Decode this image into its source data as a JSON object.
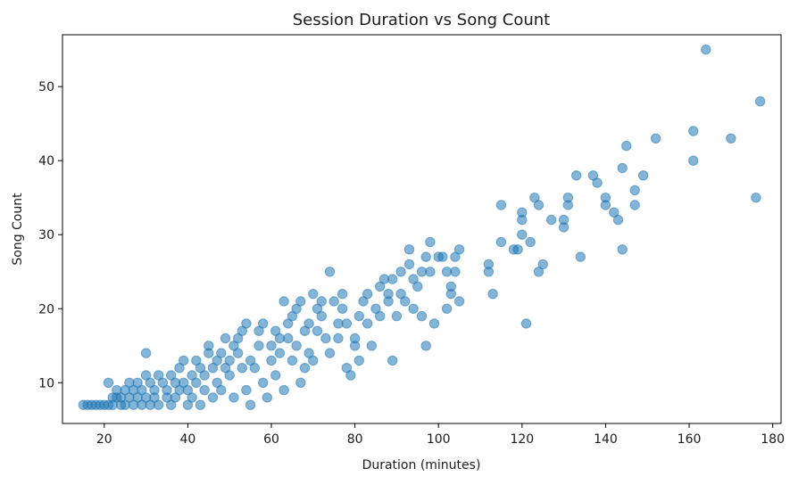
{
  "chart_data": {
    "type": "scatter",
    "title": "Session Duration vs Song Count",
    "xlabel": "Duration (minutes)",
    "ylabel": "Song Count",
    "xlim": [
      10,
      182
    ],
    "ylim": [
      4.5,
      57
    ],
    "xticks": [
      20,
      40,
      60,
      80,
      100,
      120,
      140,
      160,
      180
    ],
    "yticks": [
      10,
      20,
      30,
      40,
      50
    ],
    "grid": false,
    "marker_color": "#1f77b4",
    "marker_alpha": 0.55,
    "points": [
      [
        15,
        7
      ],
      [
        16,
        7
      ],
      [
        17,
        7
      ],
      [
        18,
        7
      ],
      [
        19,
        7
      ],
      [
        20,
        7
      ],
      [
        21,
        7
      ],
      [
        21,
        10
      ],
      [
        22,
        8
      ],
      [
        22,
        7
      ],
      [
        23,
        8
      ],
      [
        23,
        9
      ],
      [
        24,
        7
      ],
      [
        24,
        8
      ],
      [
        25,
        9
      ],
      [
        25,
        7
      ],
      [
        26,
        8
      ],
      [
        26,
        10
      ],
      [
        27,
        9
      ],
      [
        27,
        7
      ],
      [
        28,
        8
      ],
      [
        28,
        10
      ],
      [
        29,
        9
      ],
      [
        29,
        7
      ],
      [
        30,
        11
      ],
      [
        30,
        14
      ],
      [
        30,
        8
      ],
      [
        31,
        10
      ],
      [
        31,
        7
      ],
      [
        32,
        9
      ],
      [
        32,
        8
      ],
      [
        33,
        7
      ],
      [
        33,
        11
      ],
      [
        34,
        10
      ],
      [
        35,
        8
      ],
      [
        35,
        9
      ],
      [
        36,
        11
      ],
      [
        36,
        7
      ],
      [
        37,
        10
      ],
      [
        37,
        8
      ],
      [
        38,
        12
      ],
      [
        38,
        9
      ],
      [
        39,
        13
      ],
      [
        39,
        10
      ],
      [
        40,
        7
      ],
      [
        40,
        9
      ],
      [
        41,
        11
      ],
      [
        41,
        8
      ],
      [
        42,
        13
      ],
      [
        42,
        10
      ],
      [
        43,
        12
      ],
      [
        43,
        7
      ],
      [
        44,
        9
      ],
      [
        44,
        11
      ],
      [
        45,
        14
      ],
      [
        45,
        15
      ],
      [
        46,
        12
      ],
      [
        46,
        8
      ],
      [
        47,
        13
      ],
      [
        47,
        10
      ],
      [
        48,
        14
      ],
      [
        48,
        9
      ],
      [
        49,
        12
      ],
      [
        49,
        16
      ],
      [
        50,
        11
      ],
      [
        50,
        13
      ],
      [
        51,
        15
      ],
      [
        51,
        8
      ],
      [
        52,
        14
      ],
      [
        52,
        16
      ],
      [
        53,
        17
      ],
      [
        53,
        12
      ],
      [
        54,
        18
      ],
      [
        54,
        9
      ],
      [
        55,
        13
      ],
      [
        55,
        7
      ],
      [
        56,
        12
      ],
      [
        57,
        15
      ],
      [
        57,
        17
      ],
      [
        58,
        18
      ],
      [
        58,
        10
      ],
      [
        59,
        8
      ],
      [
        60,
        15
      ],
      [
        60,
        13
      ],
      [
        61,
        17
      ],
      [
        61,
        11
      ],
      [
        62,
        16
      ],
      [
        62,
        14
      ],
      [
        63,
        21
      ],
      [
        63,
        9
      ],
      [
        64,
        18
      ],
      [
        64,
        16
      ],
      [
        65,
        13
      ],
      [
        65,
        19
      ],
      [
        66,
        20
      ],
      [
        66,
        15
      ],
      [
        67,
        21
      ],
      [
        67,
        10
      ],
      [
        68,
        17
      ],
      [
        68,
        12
      ],
      [
        69,
        14
      ],
      [
        69,
        18
      ],
      [
        70,
        22
      ],
      [
        70,
        13
      ],
      [
        71,
        20
      ],
      [
        71,
        17
      ],
      [
        72,
        19
      ],
      [
        72,
        21
      ],
      [
        73,
        16
      ],
      [
        74,
        25
      ],
      [
        74,
        14
      ],
      [
        75,
        21
      ],
      [
        76,
        18
      ],
      [
        76,
        16
      ],
      [
        77,
        22
      ],
      [
        77,
        20
      ],
      [
        78,
        12
      ],
      [
        78,
        18
      ],
      [
        79,
        11
      ],
      [
        80,
        16
      ],
      [
        80,
        15
      ],
      [
        81,
        19
      ],
      [
        81,
        13
      ],
      [
        82,
        21
      ],
      [
        83,
        22
      ],
      [
        83,
        18
      ],
      [
        84,
        15
      ],
      [
        85,
        20
      ],
      [
        86,
        23
      ],
      [
        86,
        19
      ],
      [
        87,
        24
      ],
      [
        88,
        22
      ],
      [
        88,
        21
      ],
      [
        89,
        13
      ],
      [
        89,
        24
      ],
      [
        90,
        19
      ],
      [
        91,
        25
      ],
      [
        91,
        22
      ],
      [
        92,
        21
      ],
      [
        93,
        28
      ],
      [
        93,
        26
      ],
      [
        94,
        24
      ],
      [
        94,
        20
      ],
      [
        95,
        23
      ],
      [
        96,
        19
      ],
      [
        96,
        25
      ],
      [
        97,
        15
      ],
      [
        97,
        27
      ],
      [
        98,
        29
      ],
      [
        98,
        25
      ],
      [
        99,
        18
      ],
      [
        100,
        27
      ],
      [
        101,
        27
      ],
      [
        102,
        25
      ],
      [
        102,
        20
      ],
      [
        103,
        23
      ],
      [
        103,
        22
      ],
      [
        104,
        25
      ],
      [
        104,
        27
      ],
      [
        105,
        21
      ],
      [
        105,
        28
      ],
      [
        112,
        26
      ],
      [
        112,
        25
      ],
      [
        113,
        22
      ],
      [
        115,
        34
      ],
      [
        115,
        29
      ],
      [
        118,
        28
      ],
      [
        119,
        28
      ],
      [
        120,
        32
      ],
      [
        120,
        30
      ],
      [
        120,
        33
      ],
      [
        121,
        18
      ],
      [
        122,
        29
      ],
      [
        123,
        35
      ],
      [
        124,
        34
      ],
      [
        124,
        25
      ],
      [
        125,
        26
      ],
      [
        127,
        32
      ],
      [
        130,
        32
      ],
      [
        130,
        31
      ],
      [
        131,
        35
      ],
      [
        131,
        34
      ],
      [
        133,
        38
      ],
      [
        134,
        27
      ],
      [
        137,
        38
      ],
      [
        138,
        37
      ],
      [
        140,
        35
      ],
      [
        140,
        34
      ],
      [
        142,
        33
      ],
      [
        143,
        32
      ],
      [
        144,
        28
      ],
      [
        144,
        39
      ],
      [
        145,
        42
      ],
      [
        147,
        36
      ],
      [
        147,
        34
      ],
      [
        149,
        38
      ],
      [
        152,
        43
      ],
      [
        161,
        44
      ],
      [
        161,
        40
      ],
      [
        164,
        55
      ],
      [
        170,
        43
      ],
      [
        176,
        35
      ],
      [
        177,
        48
      ]
    ]
  }
}
